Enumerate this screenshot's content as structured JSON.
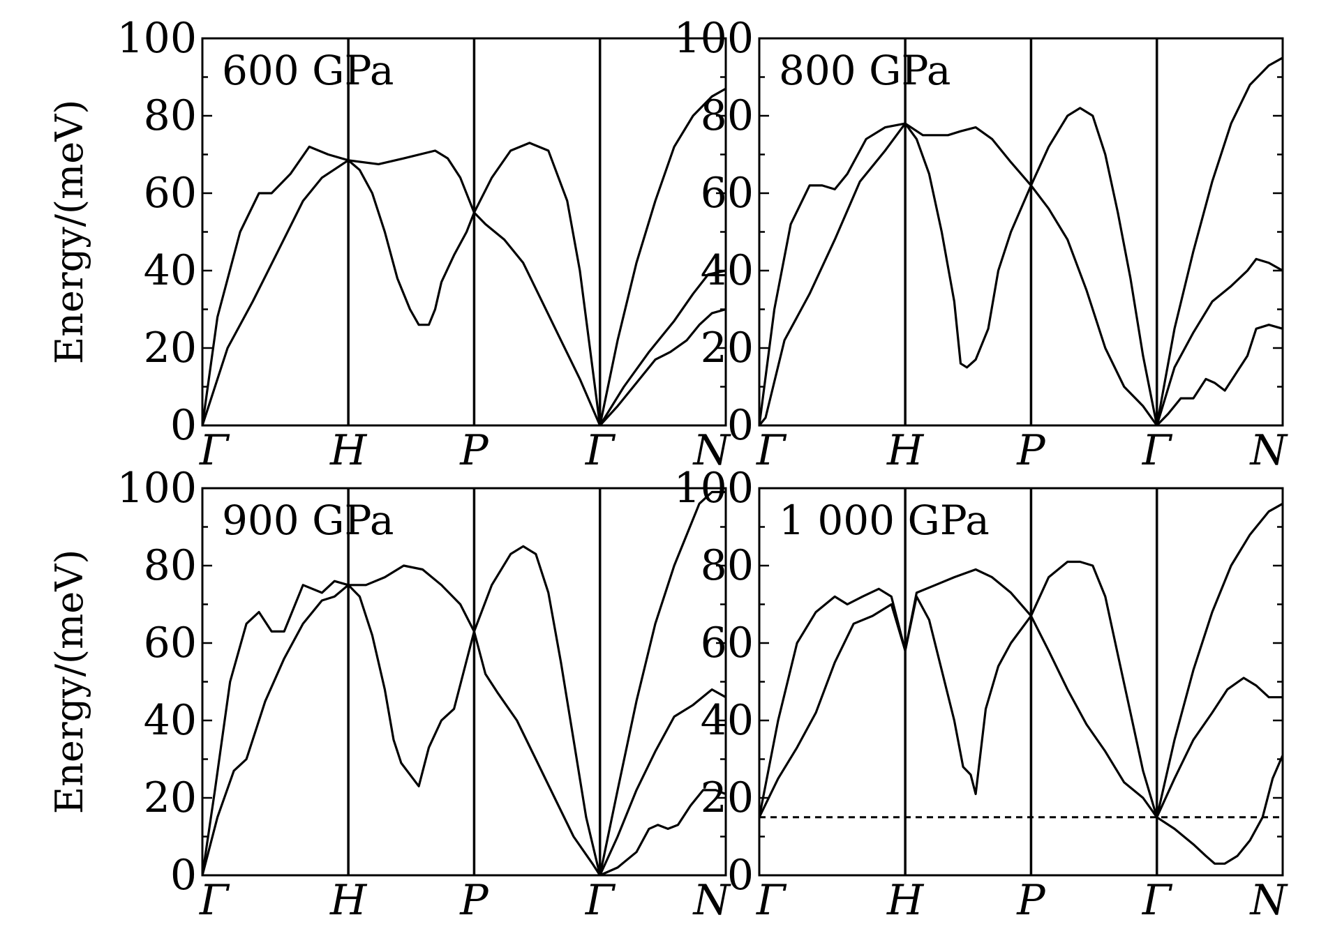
{
  "chart_data": [
    {
      "type": "line",
      "panel_label": "600 GPa",
      "ylabel": "Energy/(meV)",
      "ylim": [
        0,
        100
      ],
      "yticks": [
        0,
        20,
        40,
        60,
        80,
        100
      ],
      "x_ticks": [
        "Γ",
        "H",
        "P",
        "Γ",
        "N"
      ],
      "x_tick_positions": [
        0,
        1.16,
        2.16,
        3.16,
        4.16
      ],
      "xlim": [
        0,
        4.16
      ],
      "ref_line": null,
      "series": [
        {
          "x": [
            0,
            0.12,
            0.3,
            0.45,
            0.55,
            0.7,
            0.85,
            1.0,
            1.16
          ],
          "values": [
            0,
            28,
            50,
            60,
            60,
            65,
            72,
            70,
            68.5
          ]
        },
        {
          "x": [
            0,
            0.2,
            0.4,
            0.6,
            0.8,
            0.95,
            1.16
          ],
          "values": [
            0,
            20,
            32,
            45,
            58,
            64,
            68.5
          ]
        },
        {
          "x": [
            1.16,
            1.25,
            1.35,
            1.45,
            1.55,
            1.65,
            1.72,
            1.8,
            1.85,
            1.9,
            2.0,
            2.1,
            2.16
          ],
          "values": [
            68.5,
            66,
            60,
            50,
            38,
            30,
            26,
            26,
            30,
            37,
            44,
            50,
            55
          ]
        },
        {
          "x": [
            1.16,
            1.4,
            1.6,
            1.85,
            1.95,
            2.05,
            2.16
          ],
          "values": [
            68.5,
            67.5,
            69,
            71,
            69,
            64,
            55
          ]
        },
        {
          "x": [
            2.16,
            2.3,
            2.45,
            2.6,
            2.75,
            2.9,
            3.0,
            3.1,
            3.16
          ],
          "values": [
            55,
            64,
            71,
            73,
            71,
            58,
            40,
            15,
            0
          ]
        },
        {
          "x": [
            2.16,
            2.25,
            2.4,
            2.55,
            2.7,
            2.85,
            3.0,
            3.16
          ],
          "values": [
            55,
            52,
            48,
            42,
            32,
            22,
            12,
            0
          ]
        },
        {
          "x": [
            3.16,
            3.3,
            3.45,
            3.6,
            3.75,
            3.9,
            4.05,
            4.16
          ],
          "values": [
            0,
            22,
            42,
            58,
            72,
            80,
            85,
            87
          ]
        },
        {
          "x": [
            3.16,
            3.35,
            3.55,
            3.75,
            3.9,
            4.02,
            4.16
          ],
          "values": [
            0,
            10,
            19,
            27,
            34,
            39,
            40
          ]
        },
        {
          "x": [
            3.16,
            3.3,
            3.45,
            3.6,
            3.72,
            3.85,
            3.95,
            4.05,
            4.16
          ],
          "values": [
            0,
            5,
            11,
            17,
            19,
            22,
            26,
            29,
            30
          ]
        }
      ]
    },
    {
      "type": "line",
      "panel_label": "800 GPa",
      "ylabel": "",
      "ylim": [
        0,
        100
      ],
      "yticks": [
        0,
        20,
        40,
        60,
        80,
        100
      ],
      "x_ticks": [
        "Γ",
        "H",
        "P",
        "Γ",
        "N"
      ],
      "x_tick_positions": [
        0,
        1.16,
        2.16,
        3.16,
        4.16
      ],
      "xlim": [
        0,
        4.16
      ],
      "ref_line": null,
      "series": [
        {
          "x": [
            0,
            0.12,
            0.25,
            0.4,
            0.5,
            0.6,
            0.7,
            0.85,
            1.0,
            1.16
          ],
          "values": [
            0,
            30,
            52,
            62,
            62,
            61,
            65,
            74,
            77,
            78
          ]
        },
        {
          "x": [
            0,
            0.05,
            0.2,
            0.4,
            0.6,
            0.8,
            1.0,
            1.16
          ],
          "values": [
            0,
            2,
            22,
            34,
            48,
            63,
            71,
            78
          ]
        },
        {
          "x": [
            1.16,
            1.25,
            1.35,
            1.45,
            1.55,
            1.6,
            1.65,
            1.72,
            1.82,
            1.9,
            2.0,
            2.16
          ],
          "values": [
            78,
            74,
            65,
            50,
            32,
            16,
            15,
            17,
            25,
            40,
            50,
            62
          ]
        },
        {
          "x": [
            1.16,
            1.3,
            1.5,
            1.6,
            1.72,
            1.85,
            2.0,
            2.16
          ],
          "values": [
            78,
            75,
            75,
            76,
            77,
            74,
            68,
            62
          ]
        },
        {
          "x": [
            2.16,
            2.3,
            2.45,
            2.55,
            2.65,
            2.75,
            2.85,
            2.95,
            3.05,
            3.16
          ],
          "values": [
            62,
            72,
            80,
            82,
            80,
            70,
            55,
            38,
            18,
            0
          ]
        },
        {
          "x": [
            2.16,
            2.3,
            2.45,
            2.6,
            2.75,
            2.9,
            3.05,
            3.16
          ],
          "values": [
            62,
            56,
            48,
            35,
            20,
            10,
            5,
            0
          ]
        },
        {
          "x": [
            3.16,
            3.3,
            3.45,
            3.6,
            3.75,
            3.9,
            4.05,
            4.16
          ],
          "values": [
            0,
            25,
            45,
            63,
            78,
            88,
            93,
            95
          ]
        },
        {
          "x": [
            3.16,
            3.3,
            3.45,
            3.6,
            3.75,
            3.88,
            3.95,
            4.05,
            4.16
          ],
          "values": [
            0,
            15,
            24,
            32,
            36,
            40,
            43,
            42,
            40
          ]
        },
        {
          "x": [
            3.16,
            3.25,
            3.35,
            3.45,
            3.55,
            3.62,
            3.7,
            3.78,
            3.88,
            3.95,
            4.05,
            4.16
          ],
          "values": [
            0,
            3,
            7,
            7,
            12,
            11,
            9,
            13,
            18,
            25,
            26,
            25
          ]
        }
      ]
    },
    {
      "type": "line",
      "panel_label": "900 GPa",
      "ylabel": "Energy/(meV)",
      "ylim": [
        0,
        100
      ],
      "yticks": [
        0,
        20,
        40,
        60,
        80,
        100
      ],
      "x_ticks": [
        "Γ",
        "H",
        "P",
        "Γ",
        "N"
      ],
      "x_tick_positions": [
        0,
        1.16,
        2.16,
        3.16,
        4.16
      ],
      "xlim": [
        0,
        4.16
      ],
      "ref_line": null,
      "series": [
        {
          "x": [
            0,
            0.1,
            0.22,
            0.35,
            0.45,
            0.55,
            0.65,
            0.8,
            0.95,
            1.05,
            1.16
          ],
          "values": [
            0,
            22,
            50,
            65,
            68,
            63,
            63,
            75,
            73,
            76,
            75
          ]
        },
        {
          "x": [
            0,
            0.12,
            0.25,
            0.35,
            0.5,
            0.65,
            0.8,
            0.95,
            1.05,
            1.16
          ],
          "values": [
            0,
            15,
            27,
            30,
            45,
            56,
            65,
            71,
            72,
            75
          ]
        },
        {
          "x": [
            1.16,
            1.25,
            1.35,
            1.45,
            1.52,
            1.58,
            1.65,
            1.72,
            1.8,
            1.9,
            2.0,
            2.16
          ],
          "values": [
            75,
            72,
            62,
            48,
            35,
            29,
            26,
            23,
            33,
            40,
            43,
            63
          ]
        },
        {
          "x": [
            1.16,
            1.3,
            1.45,
            1.6,
            1.75,
            1.9,
            2.05,
            2.16
          ],
          "values": [
            75,
            75,
            77,
            80,
            79,
            75,
            70,
            63
          ]
        },
        {
          "x": [
            2.16,
            2.3,
            2.45,
            2.55,
            2.65,
            2.75,
            2.85,
            2.95,
            3.05,
            3.16
          ],
          "values": [
            63,
            75,
            83,
            85,
            83,
            73,
            55,
            35,
            15,
            0
          ]
        },
        {
          "x": [
            2.16,
            2.25,
            2.35,
            2.5,
            2.65,
            2.8,
            2.95,
            3.1,
            3.16
          ],
          "values": [
            63,
            52,
            47,
            40,
            30,
            20,
            10,
            3,
            0
          ]
        },
        {
          "x": [
            3.16,
            3.3,
            3.45,
            3.6,
            3.75,
            3.85,
            3.95,
            4.05,
            4.16
          ],
          "values": [
            0,
            22,
            45,
            65,
            80,
            88,
            96,
            99,
            99
          ]
        },
        {
          "x": [
            3.16,
            3.3,
            3.45,
            3.6,
            3.75,
            3.9,
            4.05,
            4.16
          ],
          "values": [
            0,
            10,
            22,
            32,
            41,
            44,
            48,
            46
          ]
        },
        {
          "x": [
            3.16,
            3.3,
            3.45,
            3.55,
            3.62,
            3.7,
            3.78,
            3.88,
            3.98,
            4.08,
            4.16
          ],
          "values": [
            0,
            2,
            6,
            12,
            13,
            12,
            13,
            18,
            22,
            22,
            21
          ]
        }
      ]
    },
    {
      "type": "line",
      "panel_label": "1 000 GPa",
      "ylabel": "",
      "ylim": [
        0,
        100
      ],
      "yticks": [
        0,
        20,
        40,
        60,
        80,
        100
      ],
      "x_ticks": [
        "Γ",
        "H",
        "P",
        "Γ",
        "N"
      ],
      "x_tick_positions": [
        0,
        1.16,
        2.16,
        3.16,
        4.16
      ],
      "xlim": [
        0,
        4.16
      ],
      "ref_line": 15,
      "series": [
        {
          "x": [
            0,
            0.15,
            0.3,
            0.45,
            0.6,
            0.7,
            0.82,
            0.95,
            1.05,
            1.16
          ],
          "values": [
            15,
            40,
            60,
            68,
            72,
            70,
            72,
            74,
            72,
            58
          ]
        },
        {
          "x": [
            0,
            0.15,
            0.3,
            0.45,
            0.6,
            0.75,
            0.9,
            1.05,
            1.16
          ],
          "values": [
            15,
            25,
            33,
            42,
            55,
            65,
            67,
            70,
            58
          ]
        },
        {
          "x": [
            1.16,
            1.25,
            1.35,
            1.45,
            1.55,
            1.62,
            1.68,
            1.72,
            1.8,
            1.9,
            2.0,
            2.16
          ],
          "values": [
            58,
            72,
            66,
            53,
            40,
            28,
            26,
            21,
            43,
            54,
            60,
            67
          ]
        },
        {
          "x": [
            1.16,
            1.25,
            1.4,
            1.55,
            1.72,
            1.85,
            2.0,
            2.16
          ],
          "values": [
            58,
            73,
            75,
            77,
            79,
            77,
            73,
            67
          ]
        },
        {
          "x": [
            2.16,
            2.3,
            2.45,
            2.55,
            2.65,
            2.75,
            2.85,
            2.95,
            3.05,
            3.16
          ],
          "values": [
            67,
            77,
            81,
            81,
            80,
            72,
            57,
            42,
            27,
            15
          ]
        },
        {
          "x": [
            2.16,
            2.3,
            2.45,
            2.6,
            2.75,
            2.9,
            3.05,
            3.16
          ],
          "values": [
            67,
            58,
            48,
            39,
            32,
            24,
            20,
            15
          ]
        },
        {
          "x": [
            3.16,
            3.3,
            3.45,
            3.6,
            3.75,
            3.9,
            4.05,
            4.16
          ],
          "values": [
            15,
            35,
            53,
            68,
            80,
            88,
            94,
            96
          ]
        },
        {
          "x": [
            3.16,
            3.3,
            3.45,
            3.6,
            3.72,
            3.85,
            3.95,
            4.05,
            4.16
          ],
          "values": [
            15,
            25,
            35,
            42,
            48,
            51,
            49,
            46,
            46
          ]
        },
        {
          "x": [
            3.16,
            3.3,
            3.45,
            3.55,
            3.62,
            3.7,
            3.8,
            3.9,
            4.0,
            4.08,
            4.16
          ],
          "values": [
            15,
            12,
            8,
            5,
            3,
            3,
            5,
            9,
            15,
            25,
            31
          ]
        }
      ]
    }
  ]
}
